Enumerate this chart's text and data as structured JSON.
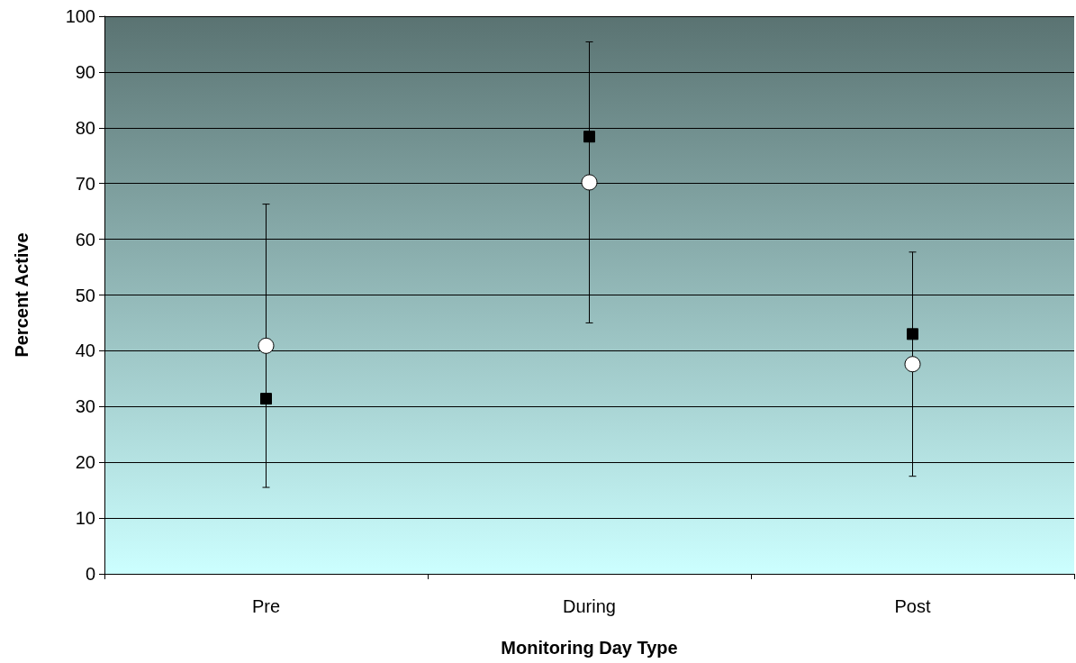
{
  "chart_data": {
    "type": "scatter",
    "xlabel": "Monitoring Day Type",
    "ylabel": "Percent Active",
    "categories": [
      "Pre",
      "During",
      "Post"
    ],
    "series": [
      {
        "color": "#000000",
        "marker": "square",
        "values": [
          31.4,
          78.4,
          43.0
        ]
      },
      {
        "color": "#ffffff",
        "marker": "circle",
        "values": [
          40.9,
          70.2,
          37.6
        ],
        "errors": [
          25.4,
          25.2,
          20.1
        ]
      }
    ],
    "ylim": [
      0,
      100
    ],
    "yticks": [
      0,
      10,
      20,
      30,
      40,
      50,
      60,
      70,
      80,
      90,
      100
    ],
    "grid": "y"
  }
}
